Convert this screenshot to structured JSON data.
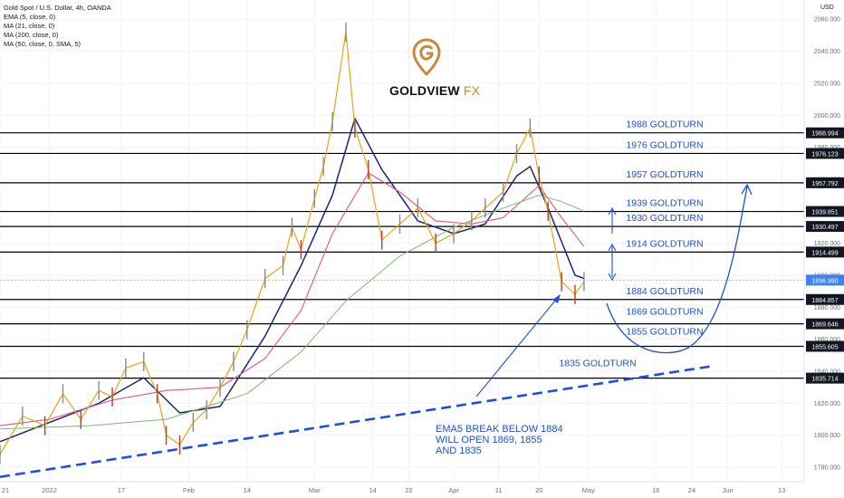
{
  "legend": {
    "title": "Gold Spot / U.S. Dollar, 4h, OANDA",
    "lines": [
      "EMA (5, close, 0)",
      "MA (21, close, 0)",
      "MA (200, close, 0)",
      "MA (50, close, 0, SMA, 5)"
    ]
  },
  "brand": {
    "name": "GOLDVIEW",
    "suffix": "FX"
  },
  "currency": "USD",
  "annotation": {
    "lines": [
      "EMA5 BREAK BELOW 1884",
      "WILL OPEN 1869, 1855",
      "AND 1835"
    ]
  },
  "colors": {
    "grid": "#f0f3fa",
    "level_line": "#000000",
    "level_text": "#1e4fd8",
    "trend": "#1e4fd8",
    "ema5": "#e8a31a",
    "ma21": "#1a237e",
    "ma200": "#7fb86b",
    "ma50": "#e05a7a",
    "candle_up": "#8a8a8a",
    "candle_down": "#c23a2a",
    "price_tag": "#3b82f6"
  },
  "chart_data": {
    "type": "line",
    "ylim": [
      1771,
      2072
    ],
    "y_ticks": [
      "2060.000",
      "2040.000",
      "2020.000",
      "2000.000",
      "1980.000",
      "1960.000",
      "1940.000",
      "1920.000",
      "1900.000",
      "1880.000",
      "1860.000",
      "1840.000",
      "1820.000",
      "1800.000",
      "1780.000"
    ],
    "y_tick_values": [
      2060,
      2040,
      2020,
      2000,
      1980,
      1960,
      1940,
      1920,
      1900,
      1880,
      1860,
      1840,
      1820,
      1800,
      1780
    ],
    "x_ticks": [
      "21",
      "2022",
      "17",
      "Feb",
      "14",
      "Mar",
      "14",
      "22",
      "Apr",
      "11",
      "20",
      "May",
      "16",
      "24",
      "Jun",
      "13"
    ],
    "x_tick_dates": [
      "2021-12-21",
      "2022-01-01",
      "2022-01-17",
      "2022-02-01",
      "2022-02-14",
      "2022-03-01",
      "2022-03-14",
      "2022-03-22",
      "2022-04-01",
      "2022-04-11",
      "2022-04-20",
      "2022-05-01",
      "2022-05-16",
      "2022-05-24",
      "2022-06-01",
      "2022-06-13"
    ],
    "levels": [
      {
        "value": 1988.994,
        "tag": "1988.994",
        "label": "1988 GOLDTURN"
      },
      {
        "value": 1976.123,
        "tag": "1976.123",
        "label": "1976 GOLDTURN"
      },
      {
        "value": 1957.792,
        "tag": "1957.792",
        "label": "1957 GOLDTURN"
      },
      {
        "value": 1939.851,
        "tag": "1939.851",
        "label": "1939 GOLDTURN"
      },
      {
        "value": 1930.497,
        "tag": "1930.497",
        "label": "1930 GOLDTURN"
      },
      {
        "value": 1914.499,
        "tag": "1914.499",
        "label": "1914 GOLDTURN"
      },
      {
        "value": 1884.857,
        "tag": "1884.857",
        "label": "1884 GOLDTURN"
      },
      {
        "value": 1869.646,
        "tag": "1869.646",
        "label": "1869 GOLDTURN"
      },
      {
        "value": 1855.605,
        "tag": "1855.605",
        "label": "1855 GOLDTURN"
      },
      {
        "value": 1835.714,
        "tag": "1835.714",
        "label": "1835 GOLDTURN"
      }
    ],
    "current_price": {
      "value": 1896.99,
      "tag": "1896.990"
    },
    "series": [
      {
        "key": "price",
        "dates": [
          "2021-12-21",
          "2021-12-26",
          "2021-12-31",
          "2022-01-04",
          "2022-01-08",
          "2022-01-12",
          "2022-01-15",
          "2022-01-18",
          "2022-01-22",
          "2022-01-25",
          "2022-01-27",
          "2022-01-30",
          "2022-02-02",
          "2022-02-05",
          "2022-02-08",
          "2022-02-11",
          "2022-02-14",
          "2022-02-18",
          "2022-02-22",
          "2022-02-24",
          "2022-02-26",
          "2022-03-01",
          "2022-03-03",
          "2022-03-05",
          "2022-03-08",
          "2022-03-10",
          "2022-03-13",
          "2022-03-16",
          "2022-03-20",
          "2022-03-24",
          "2022-03-28",
          "2022-04-01",
          "2022-04-05",
          "2022-04-08",
          "2022-04-12",
          "2022-04-15",
          "2022-04-18",
          "2022-04-20",
          "2022-04-22",
          "2022-04-25",
          "2022-04-28",
          "2022-04-30"
        ],
        "values": [
          1788,
          1812,
          1806,
          1826,
          1810,
          1828,
          1824,
          1842,
          1846,
          1826,
          1800,
          1794,
          1808,
          1816,
          1830,
          1846,
          1866,
          1898,
          1906,
          1930,
          1916,
          1948,
          1968,
          1996,
          2052,
          1992,
          1966,
          1922,
          1932,
          1942,
          1920,
          1926,
          1934,
          1942,
          1952,
          1976,
          1992,
          1962,
          1940,
          1896,
          1888,
          1896
        ]
      },
      {
        "key": "ma21",
        "dates": [
          "2021-12-21",
          "2022-01-01",
          "2022-01-12",
          "2022-01-22",
          "2022-01-30",
          "2022-02-08",
          "2022-02-18",
          "2022-02-26",
          "2022-03-05",
          "2022-03-10",
          "2022-03-16",
          "2022-03-24",
          "2022-04-01",
          "2022-04-08",
          "2022-04-15",
          "2022-04-18",
          "2022-04-22",
          "2022-04-28",
          "2022-04-30"
        ],
        "values": [
          1796,
          1808,
          1820,
          1836,
          1814,
          1818,
          1862,
          1906,
          1950,
          1998,
          1966,
          1934,
          1926,
          1932,
          1962,
          1968,
          1942,
          1900,
          1898
        ]
      },
      {
        "key": "ma50",
        "dates": [
          "2021-12-21",
          "2022-01-01",
          "2022-01-15",
          "2022-01-27",
          "2022-02-08",
          "2022-02-18",
          "2022-02-26",
          "2022-03-05",
          "2022-03-13",
          "2022-03-20",
          "2022-03-28",
          "2022-04-05",
          "2022-04-12",
          "2022-04-20",
          "2022-04-25",
          "2022-04-30"
        ],
        "values": [
          1806,
          1810,
          1822,
          1828,
          1830,
          1848,
          1878,
          1926,
          1964,
          1952,
          1934,
          1932,
          1936,
          1956,
          1936,
          1918
        ]
      },
      {
        "key": "ma200",
        "dates": [
          "2021-12-21",
          "2022-01-10",
          "2022-01-27",
          "2022-02-14",
          "2022-02-26",
          "2022-03-08",
          "2022-03-20",
          "2022-04-01",
          "2022-04-12",
          "2022-04-20",
          "2022-04-25",
          "2022-04-30"
        ],
        "values": [
          1804,
          1806,
          1810,
          1826,
          1852,
          1884,
          1912,
          1930,
          1942,
          1950,
          1946,
          1940
        ]
      }
    ]
  }
}
